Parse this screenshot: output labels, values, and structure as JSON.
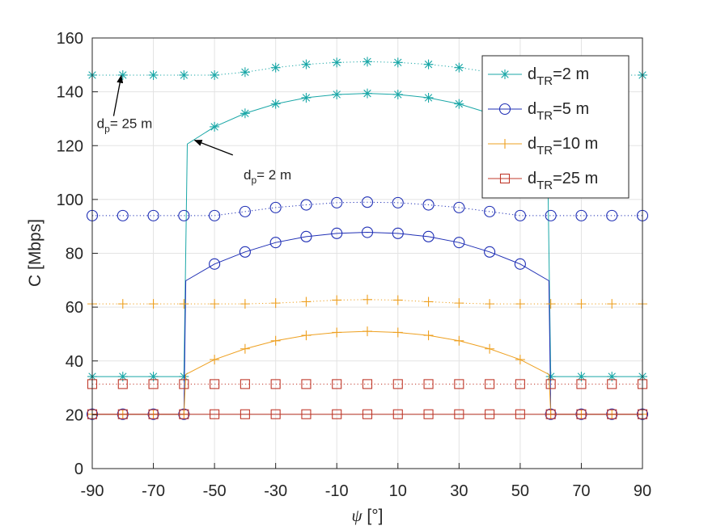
{
  "chart_data": {
    "type": "line",
    "xlabel": "ψ [°]",
    "ylabel": "C [Mbps]",
    "xlim": [
      -90,
      90
    ],
    "ylim": [
      0,
      160
    ],
    "xticks": [
      "-90",
      "-70",
      "-50",
      "-30",
      "-10",
      "10",
      "30",
      "50",
      "70",
      "90"
    ],
    "yticks": [
      "0",
      "20",
      "40",
      "60",
      "80",
      "100",
      "120",
      "140",
      "160"
    ],
    "grid": true,
    "legend_position": "top-right",
    "colors": {
      "teal": "#1aa7a7",
      "blue": "#1f2fb5",
      "orange": "#eea020",
      "red": "#c0392b"
    },
    "series": [
      {
        "name_main": "d",
        "name_sub": "TR",
        "name_rest": "=2 m",
        "marker": "asterisk",
        "color": "#1aa7a7",
        "dotted": {
          "x": [
            -90,
            -80,
            -70,
            -60,
            -50,
            -40,
            -30,
            -20,
            -10,
            0,
            10,
            20,
            30,
            40,
            50,
            60,
            70,
            80,
            90
          ],
          "y": [
            146.2,
            146.2,
            146.2,
            146.2,
            146.2,
            147.3,
            149.0,
            150.2,
            150.9,
            151.2,
            150.9,
            150.2,
            149.0,
            147.3,
            146.2,
            146.2,
            146.2,
            146.2,
            146.2
          ]
        },
        "solid": {
          "x": [
            -90,
            -80,
            -70,
            -60,
            -58.9,
            -50,
            -40,
            -30,
            -20,
            -10,
            0,
            10,
            20,
            30,
            40,
            50,
            58.9,
            60,
            70,
            80,
            90
          ],
          "y": [
            34.2,
            34.2,
            34.2,
            34.2,
            120.6,
            127.0,
            132.0,
            135.5,
            137.8,
            139.0,
            139.4,
            139.0,
            137.8,
            135.5,
            132.0,
            127.0,
            120.6,
            34.2,
            34.2,
            34.2,
            34.2
          ],
          "marker_mask": [
            1,
            1,
            1,
            1,
            0,
            1,
            1,
            1,
            1,
            1,
            1,
            1,
            1,
            1,
            0,
            0,
            0,
            1,
            1,
            1,
            1
          ]
        }
      },
      {
        "name_main": "d",
        "name_sub": "TR",
        "name_rest": "=5 m",
        "marker": "circle",
        "color": "#1f2fb5",
        "dotted": {
          "x": [
            -90,
            -80,
            -70,
            -60,
            -50,
            -40,
            -30,
            -20,
            -10,
            0,
            10,
            20,
            30,
            40,
            50,
            60,
            70,
            80,
            90
          ],
          "y": [
            94.0,
            94.0,
            94.0,
            94.0,
            94.0,
            95.5,
            97.0,
            98.0,
            98.8,
            99.0,
            98.8,
            98.0,
            97.0,
            95.5,
            94.0,
            94.0,
            94.0,
            94.0,
            94.0
          ]
        },
        "solid": {
          "x": [
            -90,
            -80,
            -70,
            -60,
            -59.4,
            -50,
            -40,
            -30,
            -20,
            -10,
            0,
            10,
            20,
            30,
            40,
            50,
            59.4,
            60,
            70,
            80,
            90
          ],
          "y": [
            20.2,
            20.2,
            20.2,
            20.2,
            69.8,
            76.0,
            80.5,
            84.0,
            86.2,
            87.4,
            87.8,
            87.4,
            86.2,
            84.0,
            80.5,
            76.0,
            69.8,
            20.2,
            20.2,
            20.2,
            20.2
          ],
          "marker_mask": [
            1,
            1,
            1,
            1,
            0,
            1,
            1,
            1,
            1,
            1,
            1,
            1,
            1,
            1,
            1,
            1,
            0,
            1,
            1,
            1,
            1
          ]
        }
      },
      {
        "name_main": "d",
        "name_sub": "TR",
        "name_rest": "=10 m",
        "marker": "plus",
        "color": "#eea020",
        "dotted": {
          "x": [
            -90,
            -80,
            -70,
            -60,
            -50,
            -40,
            -30,
            -20,
            -10,
            0,
            10,
            20,
            30,
            40,
            50,
            60,
            70,
            80,
            90
          ],
          "y": [
            61.2,
            61.2,
            61.2,
            61.2,
            61.2,
            61.2,
            61.5,
            62.0,
            62.6,
            62.8,
            62.6,
            62.0,
            61.5,
            61.2,
            61.2,
            61.2,
            61.2,
            61.2,
            61.2
          ]
        },
        "solid": {
          "x": [
            -90,
            -80,
            -70,
            -60,
            -59.4,
            -50,
            -40,
            -30,
            -20,
            -10,
            0,
            10,
            20,
            30,
            40,
            50,
            59.4,
            60,
            70,
            80,
            90
          ],
          "y": [
            20.2,
            20.2,
            20.2,
            20.2,
            35.0,
            40.5,
            44.5,
            47.5,
            49.5,
            50.6,
            51.0,
            50.6,
            49.5,
            47.5,
            44.5,
            40.5,
            35.0,
            20.2,
            20.2,
            20.2,
            20.2
          ],
          "marker_mask": [
            1,
            1,
            1,
            1,
            0,
            1,
            1,
            1,
            1,
            1,
            1,
            1,
            1,
            1,
            1,
            1,
            0,
            1,
            1,
            1,
            1
          ]
        }
      },
      {
        "name_main": "d",
        "name_sub": "TR",
        "name_rest": "=25 m",
        "marker": "square",
        "color": "#c0392b",
        "dotted": {
          "x": [
            -90,
            -80,
            -70,
            -60,
            -50,
            -40,
            -30,
            -20,
            -10,
            0,
            10,
            20,
            30,
            40,
            50,
            60,
            70,
            80,
            90
          ],
          "y": [
            31.4,
            31.4,
            31.4,
            31.4,
            31.4,
            31.4,
            31.4,
            31.4,
            31.4,
            31.4,
            31.4,
            31.4,
            31.4,
            31.4,
            31.4,
            31.4,
            31.4,
            31.4,
            31.4
          ]
        },
        "solid": {
          "x": [
            -90,
            -80,
            -70,
            -60,
            -50,
            -40,
            -30,
            -20,
            -10,
            0,
            10,
            20,
            30,
            40,
            50,
            60,
            70,
            80,
            90
          ],
          "y": [
            20.2,
            20.2,
            20.2,
            20.2,
            20.2,
            20.2,
            20.2,
            20.2,
            20.2,
            20.2,
            20.2,
            20.2,
            20.2,
            20.2,
            20.2,
            20.2,
            20.2,
            20.2,
            20.2
          ],
          "marker_mask": [
            1,
            1,
            1,
            1,
            1,
            1,
            1,
            1,
            1,
            1,
            1,
            1,
            1,
            1,
            1,
            1,
            1,
            1,
            1
          ]
        }
      }
    ],
    "annotations": [
      {
        "main": "d",
        "sub": "p",
        "rest": "= 25 m",
        "label_at": [
          -88.5,
          126.5
        ],
        "arrow_from": [
          -83.0,
          131.0
        ],
        "arrow_to": [
          -80.5,
          146.0
        ]
      },
      {
        "main": "d",
        "sub": "p",
        "rest": "= 2 m",
        "label_at": [
          -40.5,
          107.5
        ],
        "arrow_from": [
          -44.0,
          116.5
        ],
        "arrow_to": [
          -56.5,
          122.0
        ]
      }
    ]
  }
}
